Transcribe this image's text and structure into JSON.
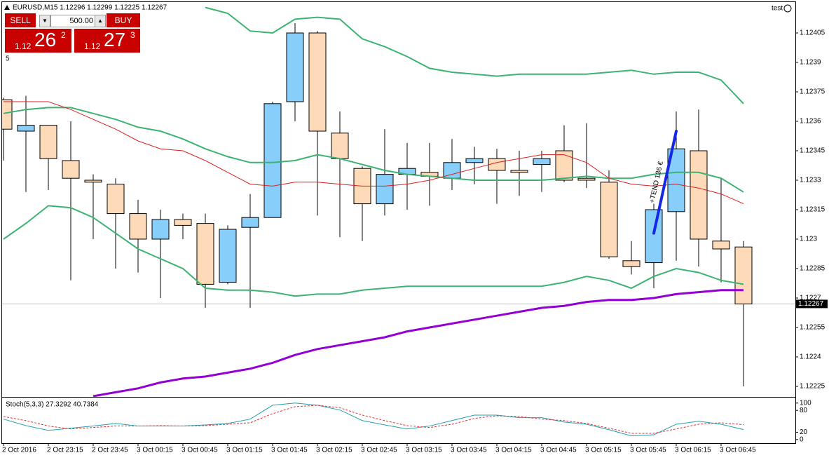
{
  "ui": {
    "account": "test",
    "marker": "5",
    "trade_panel": {
      "sell": "SELL",
      "buy": "BUY",
      "lot": "500.00",
      "bid": {
        "big": "1.12",
        "pips": "26",
        "frac": "2"
      },
      "ask": {
        "big": "1.12",
        "pips": "27",
        "frac": "3"
      }
    }
  },
  "chart_data": [
    {
      "type": "candlestick",
      "title": "EURUSD,M15  1.12296 1.12299 1.12225 1.12267",
      "categories": [
        "2 Oct 2016",
        null,
        "2 Oct 23:15",
        null,
        "2 Oct 23:45",
        null,
        "3 Oct 00:15",
        null,
        "3 Oct 00:45",
        null,
        "3 Oct 01:15",
        null,
        "3 Oct 01:45",
        null,
        "3 Oct 02:15",
        null,
        "3 Oct 02:45",
        null,
        "3 Oct 03:15",
        null,
        "3 Oct 03:45",
        null,
        "3 Oct 04:15",
        null,
        "3 Oct 04:45",
        null,
        "3 Oct 05:15",
        null,
        "3 Oct 05:45",
        null,
        "3 Oct 06:15",
        null,
        "3 Oct 06:45",
        null
      ],
      "open": [
        1.12371,
        1.12355,
        1.12358,
        1.1234,
        1.1233,
        1.12328,
        1.12313,
        1.123,
        1.1231,
        1.12308,
        1.12278,
        1.12306,
        1.12311,
        1.1237,
        1.12405,
        1.12354,
        1.12336,
        1.12318,
        1.12333,
        1.12334,
        1.12331,
        1.12339,
        1.12341,
        1.12335,
        1.12338,
        1.12345,
        1.12331,
        1.12329,
        1.12289,
        1.12288,
        1.12314,
        1.12345,
        1.12299,
        1.12296
      ],
      "high": [
        1.12372,
        1.12373,
        1.12358,
        1.1236,
        1.12333,
        1.12331,
        1.1232,
        1.12315,
        1.12313,
        1.12313,
        1.12307,
        1.12323,
        1.1237,
        1.1241,
        1.12406,
        1.12365,
        1.12337,
        1.12356,
        1.12349,
        1.12349,
        1.12351,
        1.12347,
        1.12346,
        1.12345,
        1.12345,
        1.12358,
        1.12359,
        1.12335,
        1.12299,
        1.12318,
        1.12365,
        1.12366,
        1.12331,
        1.12299
      ],
      "low": [
        1.1234,
        1.12324,
        1.12325,
        1.12279,
        1.123,
        1.12285,
        1.12283,
        1.1227,
        1.123,
        1.12265,
        1.12277,
        1.12265,
        1.12311,
        1.1236,
        1.12312,
        1.12301,
        1.12299,
        1.12312,
        1.12315,
        1.12317,
        1.12325,
        1.12328,
        1.12318,
        1.12322,
        1.12324,
        1.12329,
        1.12326,
        1.1229,
        1.12282,
        1.12275,
        1.12289,
        1.12286,
        1.12278,
        1.12225
      ],
      "close": [
        1.12356,
        1.12358,
        1.12341,
        1.12331,
        1.12329,
        1.12313,
        1.123,
        1.1231,
        1.12307,
        1.12277,
        1.12305,
        1.12311,
        1.12369,
        1.12405,
        1.12355,
        1.12341,
        1.12318,
        1.12333,
        1.12336,
        1.12332,
        1.12339,
        1.12341,
        1.12335,
        1.12334,
        1.12341,
        1.1233,
        1.1233,
        1.12291,
        1.12286,
        1.12315,
        1.12346,
        1.123,
        1.12295,
        1.12267
      ],
      "up_color": "#87cefa",
      "down_color": "#ffdab9",
      "series": [
        {
          "color": "#3cb371",
          "line_width": 2,
          "values": [
            null,
            null,
            null,
            null,
            null,
            null,
            null,
            null,
            null,
            1.12418,
            1.12415,
            1.12406,
            1.12405,
            1.12412,
            1.12413,
            1.12412,
            1.12402,
            1.12398,
            1.12393,
            1.12387,
            1.12385,
            1.12384,
            1.12383,
            1.12384,
            1.12384,
            1.12384,
            1.12384,
            1.12385,
            1.12386,
            1.12384,
            1.12385,
            1.12385,
            1.12381,
            1.12369
          ]
        },
        {
          "color": "#3cb371",
          "line_width": 2,
          "values": [
            1.12364,
            1.12366,
            1.12367,
            1.12367,
            1.12364,
            1.12361,
            1.12357,
            1.12355,
            1.12351,
            1.12346,
            1.12342,
            1.12339,
            1.12339,
            1.1234,
            1.12343,
            1.12341,
            1.12338,
            1.12335,
            1.12333,
            1.12332,
            1.12331,
            1.1233,
            1.1233,
            1.1233,
            1.1233,
            1.12331,
            1.12332,
            1.12331,
            1.12331,
            1.12333,
            1.12334,
            1.12334,
            1.12331,
            1.12324
          ]
        },
        {
          "color": "#3cb371",
          "line_width": 2,
          "values": [
            1.123,
            1.12308,
            1.12317,
            1.12316,
            1.12311,
            1.12303,
            1.12295,
            1.1229,
            1.12285,
            1.12275,
            1.12274,
            1.12274,
            1.12273,
            1.12271,
            1.12272,
            1.12272,
            1.12274,
            1.12275,
            1.12276,
            1.12276,
            1.12276,
            1.12276,
            1.12276,
            1.12276,
            1.12276,
            1.12278,
            1.12281,
            1.12279,
            1.12275,
            1.12281,
            1.12285,
            1.12283,
            1.12279,
            1.12277
          ]
        },
        {
          "color": "#dc2020",
          "line_width": 1,
          "values": [
            1.1237,
            1.1237,
            1.1237,
            1.12366,
            1.12361,
            1.12356,
            1.1235,
            1.12346,
            1.12345,
            1.1234,
            1.12334,
            1.12328,
            1.12327,
            1.12329,
            1.12329,
            1.12328,
            1.12327,
            1.12327,
            1.12328,
            1.1233,
            1.12333,
            1.12336,
            1.12339,
            1.12341,
            1.12343,
            1.12343,
            1.12339,
            1.12331,
            1.12328,
            1.12327,
            1.12328,
            1.12326,
            1.12323,
            1.12318
          ]
        },
        {
          "color": "#9400d3",
          "line_width": 3,
          "values": [
            null,
            null,
            null,
            null,
            1.1222,
            1.12222,
            1.12224,
            1.12227,
            1.12229,
            1.1223,
            1.12232,
            1.12234,
            1.12237,
            1.12241,
            1.12244,
            1.12246,
            1.12248,
            1.1225,
            1.12253,
            1.12255,
            1.12257,
            1.12259,
            1.12261,
            1.12263,
            1.12265,
            1.12266,
            1.12268,
            1.12269,
            1.12269,
            1.1227,
            1.12272,
            1.12273,
            1.12274,
            1.12274
          ]
        }
      ],
      "trendline": {
        "text": "+TEND 136 €",
        "color": "#1428e6",
        "from": 1.12303,
        "to": 1.12355
      },
      "last_price": 1.12267,
      "ylim": [
        1.1222,
        1.1242
      ],
      "yticks": [
        1.12405,
        1.1239,
        1.12375,
        1.1236,
        1.12345,
        1.1233,
        1.12315,
        1.123,
        1.12285,
        1.1227,
        1.12255,
        1.1224,
        1.12225
      ]
    },
    {
      "type": "line",
      "title": "Stoch(5,3,3) 27.3292 40.7384",
      "series": [
        {
          "color": "#20a0b0",
          "dashed": false,
          "values": [
            56,
            38,
            25,
            31,
            37,
            44,
            37,
            37,
            37,
            40,
            44,
            56,
            94,
            100,
            94,
            81,
            52,
            40,
            29,
            37,
            52,
            67,
            67,
            60,
            60,
            48,
            42,
            27,
            10,
            13,
            42,
            50,
            42,
            27.3292
          ]
        },
        {
          "color": "#e03030",
          "dashed": true,
          "values": [
            63,
            52,
            37,
            29,
            33,
            37,
            37,
            38,
            37,
            38,
            42,
            46,
            71,
            90,
            94,
            87,
            67,
            52,
            38,
            33,
            42,
            58,
            65,
            63,
            56,
            52,
            44,
            31,
            17,
            17,
            29,
            42,
            46,
            40.7384
          ]
        }
      ],
      "ylim": [
        -10,
        115
      ],
      "yticks": [
        100,
        80,
        20,
        0
      ]
    }
  ]
}
